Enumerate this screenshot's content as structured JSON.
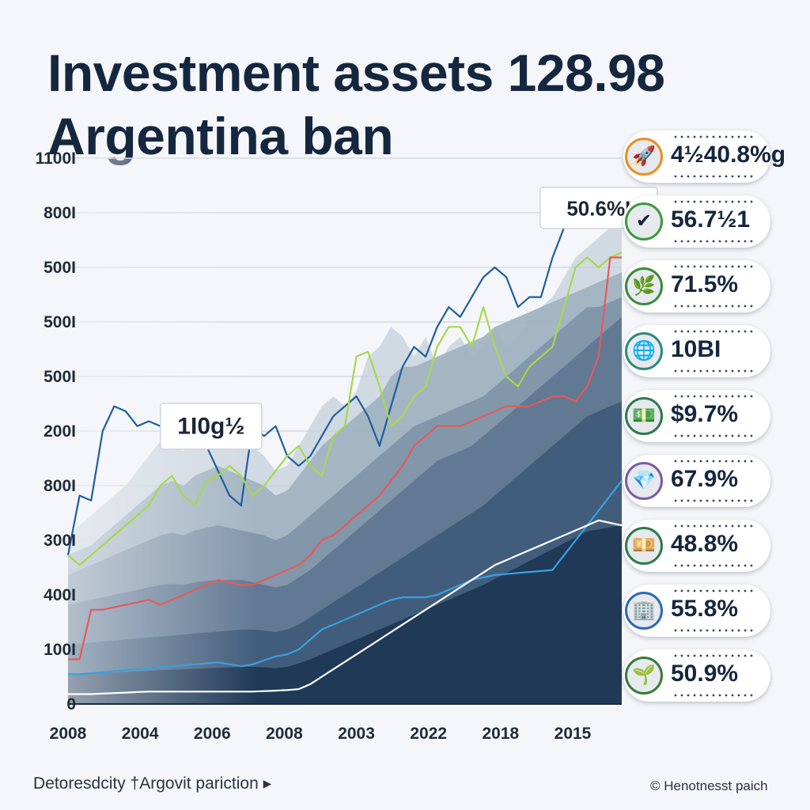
{
  "title": {
    "line1": "Investment assets 128.98",
    "line2": "Argentina ban"
  },
  "chart_data": {
    "type": "area",
    "title": "Investment assets 128.98 Argentina ban",
    "y_tick_labels": [
      "0",
      "100I",
      "400I",
      "300I",
      "800I",
      "200I",
      "500I",
      "500I",
      "500I",
      "800I",
      "1100I"
    ],
    "x_tick_labels": [
      "2008",
      "2004",
      "2006",
      "2008",
      "2003",
      "2022",
      "2018",
      "2015"
    ],
    "ylim": [
      0,
      1100
    ],
    "grid": true,
    "callouts": [
      {
        "label": "50.6%I",
        "x": 23.0,
        "y": 1000
      },
      {
        "label": "1I0g½",
        "x": 6.2,
        "y": 560
      }
    ],
    "x": [
      0,
      0.5,
      1,
      1.5,
      2,
      2.5,
      3,
      3.5,
      4,
      4.5,
      5,
      5.5,
      6,
      6.5,
      7,
      7.5,
      8,
      8.5,
      9,
      9.5,
      10,
      10.5,
      11,
      11.5,
      12,
      12.5,
      13,
      13.5,
      14,
      14.5,
      15,
      15.5,
      16,
      16.5,
      17,
      17.5,
      18,
      18.5,
      19,
      19.5,
      20,
      20.5,
      21,
      21.5,
      22,
      22.5,
      23,
      23.5,
      24
    ],
    "area_series": [
      {
        "values": [
          340,
          360,
          380,
          400,
          420,
          440,
          470,
          500,
          530,
          520,
          510,
          560,
          540,
          570,
          560,
          530,
          520,
          500,
          470,
          480,
          520,
          560,
          600,
          620,
          600,
          630,
          700,
          720,
          760,
          740,
          700,
          740,
          680,
          720,
          740,
          700,
          720,
          760,
          720,
          740,
          780,
          800,
          820,
          860,
          900,
          920,
          940,
          960,
          1000
        ]
      },
      {
        "values": [
          300,
          310,
          320,
          340,
          360,
          380,
          400,
          420,
          440,
          450,
          440,
          460,
          470,
          480,
          470,
          460,
          450,
          440,
          420,
          430,
          460,
          490,
          520,
          540,
          560,
          580,
          600,
          620,
          660,
          680,
          680,
          690,
          700,
          710,
          720,
          730,
          740,
          760,
          770,
          780,
          790,
          800,
          810,
          820,
          830,
          840,
          850,
          860,
          870
        ]
      },
      {
        "values": [
          260,
          270,
          280,
          290,
          300,
          310,
          320,
          330,
          340,
          345,
          340,
          350,
          355,
          360,
          355,
          350,
          345,
          340,
          330,
          340,
          360,
          380,
          400,
          420,
          440,
          460,
          480,
          500,
          520,
          540,
          560,
          570,
          580,
          590,
          600,
          610,
          620,
          640,
          660,
          680,
          700,
          720,
          740,
          760,
          780,
          800,
          800,
          810,
          820
        ]
      },
      {
        "values": [
          200,
          205,
          210,
          215,
          220,
          225,
          230,
          235,
          240,
          242,
          240,
          245,
          248,
          250,
          250,
          250,
          245,
          240,
          235,
          240,
          255,
          270,
          290,
          310,
          330,
          350,
          370,
          390,
          410,
          430,
          450,
          470,
          490,
          500,
          510,
          520,
          540,
          560,
          580,
          600,
          620,
          640,
          660,
          680,
          700,
          720,
          740,
          760,
          780
        ]
      },
      {
        "values": [
          120,
          122,
          124,
          126,
          128,
          130,
          132,
          134,
          136,
          138,
          140,
          142,
          144,
          146,
          148,
          150,
          150,
          148,
          145,
          150,
          160,
          175,
          190,
          205,
          220,
          235,
          250,
          265,
          280,
          295,
          310,
          325,
          340,
          355,
          370,
          385,
          400,
          420,
          440,
          460,
          480,
          500,
          520,
          540,
          560,
          580,
          590,
          600,
          610
        ]
      },
      {
        "values": [
          60,
          61,
          62,
          63,
          64,
          65,
          66,
          67,
          68,
          69,
          70,
          71,
          72,
          73,
          74,
          75,
          75,
          74,
          72,
          75,
          82,
          90,
          100,
          110,
          120,
          130,
          140,
          150,
          160,
          170,
          180,
          190,
          200,
          210,
          220,
          230,
          240,
          252,
          264,
          276,
          288,
          300,
          312,
          324,
          336,
          348,
          352,
          356,
          360
        ]
      }
    ],
    "line_series": [
      {
        "color": "#1f5f9e",
        "values": [
          300,
          420,
          410,
          550,
          600,
          590,
          560,
          570,
          560,
          570,
          540,
          580,
          520,
          470,
          420,
          400,
          560,
          540,
          560,
          500,
          480,
          500,
          540,
          580,
          600,
          620,
          580,
          520,
          600,
          680,
          720,
          700,
          760,
          800,
          780,
          820,
          860,
          880,
          860,
          800,
          820,
          820,
          900,
          960,
          1000,
          980,
          960,
          980,
          1000
        ]
      },
      {
        "color": "#a8d84a",
        "values": [
          300,
          280,
          300,
          320,
          340,
          360,
          380,
          400,
          440,
          460,
          420,
          400,
          450,
          460,
          480,
          460,
          420,
          440,
          470,
          500,
          520,
          480,
          460,
          540,
          560,
          700,
          710,
          640,
          560,
          580,
          620,
          640,
          720,
          760,
          760,
          720,
          800,
          720,
          660,
          640,
          680,
          700,
          720,
          800,
          880,
          900,
          880,
          900,
          910
        ]
      },
      {
        "color": "#e65a5a",
        "values": [
          90,
          90,
          190,
          190,
          195,
          200,
          205,
          210,
          200,
          210,
          220,
          230,
          240,
          250,
          245,
          240,
          240,
          250,
          260,
          270,
          280,
          300,
          330,
          340,
          360,
          380,
          400,
          420,
          450,
          480,
          520,
          540,
          560,
          560,
          560,
          570,
          580,
          590,
          600,
          600,
          600,
          610,
          620,
          620,
          610,
          640,
          700,
          900,
          900
        ]
      },
      {
        "color": "#3aa0e0",
        "values": [
          60,
          60,
          62,
          64,
          66,
          68,
          70,
          72,
          74,
          76,
          78,
          80,
          82,
          84,
          80,
          76,
          80,
          88,
          96,
          100,
          110,
          130,
          150,
          160,
          170,
          180,
          190,
          200,
          210,
          215,
          215,
          215,
          220,
          230,
          240,
          250,
          255,
          260,
          262,
          264,
          266,
          268,
          270,
          300,
          330,
          360,
          390,
          420,
          450
        ]
      },
      {
        "color": "#ffffff",
        "values": [
          20,
          20,
          20,
          21,
          22,
          23,
          24,
          25,
          25,
          25,
          25,
          25,
          25,
          25,
          25,
          25,
          25,
          26,
          27,
          28,
          30,
          40,
          55,
          70,
          85,
          100,
          115,
          130,
          145,
          160,
          175,
          190,
          205,
          220,
          235,
          250,
          265,
          280,
          290,
          300,
          310,
          320,
          330,
          340,
          350,
          360,
          370,
          365,
          360
        ]
      }
    ]
  },
  "badges": [
    {
      "value": "4½40.8%g",
      "icon": "rocket-icon",
      "icon_color": "#e8901e",
      "icon_glyph": "🚀"
    },
    {
      "value": "56.7½1",
      "icon": "checkmark-icon",
      "icon_color": "#3c9a3c",
      "icon_glyph": "✔"
    },
    {
      "value": "71.5%",
      "icon": "leaf-icon",
      "icon_color": "#3a8a3a",
      "icon_glyph": "🌿"
    },
    {
      "value": "10BI",
      "icon": "globe-icon",
      "icon_color": "#2e8a7a",
      "icon_glyph": "🌐"
    },
    {
      "value": "$9.7%",
      "icon": "cash-icon",
      "icon_color": "#2e7a4a",
      "icon_glyph": "💵"
    },
    {
      "value": "67.9%",
      "icon": "gem-icon",
      "icon_color": "#7a5aa8",
      "icon_glyph": "💎"
    },
    {
      "value": "48.8%",
      "icon": "banknote-icon",
      "icon_color": "#2e7a4a",
      "icon_glyph": "💴"
    },
    {
      "value": "55.8%",
      "icon": "building-icon",
      "icon_color": "#2a6ab8",
      "icon_glyph": "🏢"
    },
    {
      "value": "50.9%",
      "icon": "plant-icon",
      "icon_color": "#3a7a3a",
      "icon_glyph": "🌱"
    }
  ],
  "footer": {
    "left": "Detoresdcity †Argovit pariction ▸",
    "right": "© Henotnesst paich"
  },
  "colors": {
    "background": "#f4f6f9",
    "title": "#15263f",
    "area_dark": "#1c3553",
    "area_light": "#c8d2dc"
  }
}
